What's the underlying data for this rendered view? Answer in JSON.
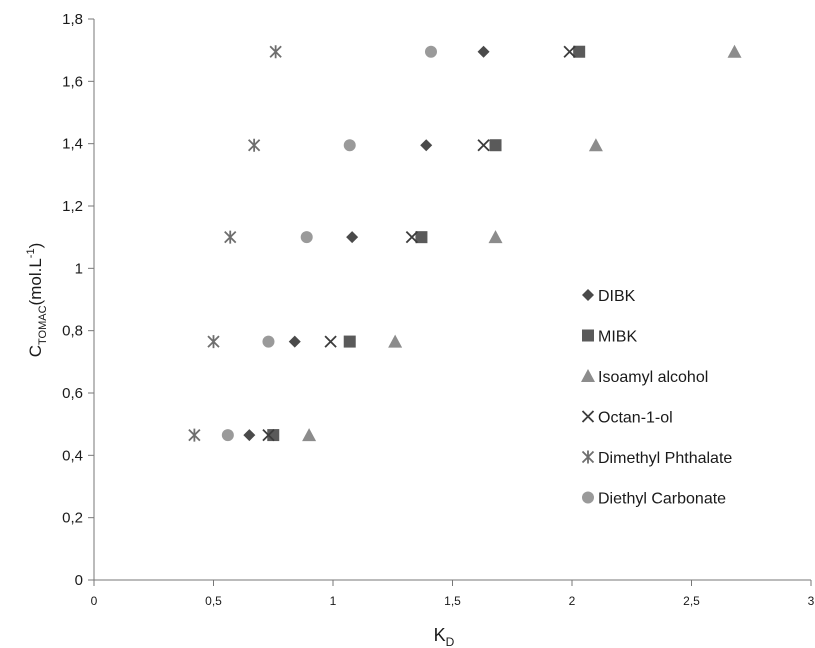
{
  "chart_data": {
    "type": "scatter",
    "xlabel": "K",
    "xlabel_sub": "D",
    "ylabel_main": "C",
    "ylabel_sub": "TOMAC",
    "ylabel_unit": "(mol.L",
    "ylabel_sup": "-1",
    "ylabel_close": ")",
    "xlim": [
      0,
      3
    ],
    "ylim": [
      0,
      1.8
    ],
    "xticks": [
      {
        "v": 0,
        "label": "0"
      },
      {
        "v": 0.5,
        "label": "0,5"
      },
      {
        "v": 1,
        "label": "1"
      },
      {
        "v": 1.5,
        "label": "1,5"
      },
      {
        "v": 2,
        "label": "2"
      },
      {
        "v": 2.5,
        "label": "2,5"
      },
      {
        "v": 3,
        "label": "3"
      }
    ],
    "yticks": [
      {
        "v": 0,
        "label": "0"
      },
      {
        "v": 0.2,
        "label": "0,2"
      },
      {
        "v": 0.4,
        "label": "0,4"
      },
      {
        "v": 0.6,
        "label": "0,6"
      },
      {
        "v": 0.8,
        "label": "0,8"
      },
      {
        "v": 1,
        "label": "1"
      },
      {
        "v": 1.2,
        "label": "1,2"
      },
      {
        "v": 1.4,
        "label": "1,4"
      },
      {
        "v": 1.6,
        "label": "1,6"
      },
      {
        "v": 1.8,
        "label": "1,8"
      }
    ],
    "grid": false,
    "legend_position": "right",
    "series": [
      {
        "name": "DIBK",
        "marker": "diamond",
        "color": "#4a4a4a",
        "x": [
          0.65,
          0.84,
          1.08,
          1.39,
          1.63
        ],
        "y": [
          0.465,
          0.765,
          1.1,
          1.395,
          1.695
        ]
      },
      {
        "name": "MIBK",
        "marker": "square",
        "color": "#5a5a5a",
        "x": [
          0.75,
          1.07,
          1.37,
          1.68,
          2.03
        ],
        "y": [
          0.465,
          0.765,
          1.1,
          1.395,
          1.695
        ]
      },
      {
        "name": "Isoamyl alcohol",
        "marker": "triangle",
        "color": "#8c8c8c",
        "x": [
          0.9,
          1.26,
          1.68,
          2.1,
          2.68
        ],
        "y": [
          0.465,
          0.765,
          1.1,
          1.395,
          1.695
        ]
      },
      {
        "name": "Octan-1-ol",
        "marker": "x",
        "color": "#3c3c3c",
        "x": [
          0.73,
          0.99,
          1.33,
          1.63,
          1.99
        ],
        "y": [
          0.465,
          0.765,
          1.1,
          1.395,
          1.695
        ]
      },
      {
        "name": "Dimethyl Phthalate",
        "marker": "star",
        "color": "#6e6e6e",
        "x": [
          0.42,
          0.5,
          0.57,
          0.67,
          0.76
        ],
        "y": [
          0.465,
          0.765,
          1.1,
          1.395,
          1.695
        ]
      },
      {
        "name": "Diethyl Carbonate",
        "marker": "circle",
        "color": "#9a9a9a",
        "x": [
          0.56,
          0.73,
          0.89,
          1.07,
          1.41
        ],
        "y": [
          0.465,
          0.765,
          1.1,
          1.395,
          1.695
        ]
      }
    ]
  }
}
